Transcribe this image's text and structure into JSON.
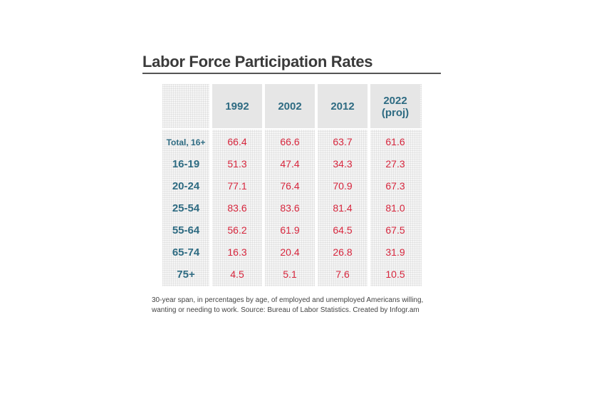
{
  "title": "Labor Force Participation Rates",
  "note": "30-year span, in percentages by age, of employed and unemployed Americans willing, wanting or needing to work. Source: Bureau of Labor Statistics. Created by Infogr.am",
  "colors": {
    "header_text": "#2e6b82",
    "value_text": "#d7263d",
    "header_bg": "#e6e6e6",
    "body_bg": "#f6f6f6"
  },
  "chart_data": {
    "type": "table",
    "title": "Labor Force Participation Rates",
    "columns": [
      {
        "line1": "1992",
        "line2": ""
      },
      {
        "line1": "2002",
        "line2": ""
      },
      {
        "line1": "2012",
        "line2": ""
      },
      {
        "line1": "2022",
        "line2": "(proj)"
      }
    ],
    "rows": [
      {
        "label": "Total, 16+",
        "values": [
          "66.4",
          "66.6",
          "63.7",
          "61.6"
        ]
      },
      {
        "label": "16-19",
        "values": [
          "51.3",
          "47.4",
          "34.3",
          "27.3"
        ]
      },
      {
        "label": "20-24",
        "values": [
          "77.1",
          "76.4",
          "70.9",
          "67.3"
        ]
      },
      {
        "label": "25-54",
        "values": [
          "83.6",
          "83.6",
          "81.4",
          "81.0"
        ]
      },
      {
        "label": "55-64",
        "values": [
          "56.2",
          "61.9",
          "64.5",
          "67.5"
        ]
      },
      {
        "label": "65-74",
        "values": [
          "16.3",
          "20.4",
          "26.8",
          "31.9"
        ]
      },
      {
        "label": "75+",
        "values": [
          "4.5",
          "5.1",
          "7.6",
          "10.5"
        ]
      }
    ]
  }
}
